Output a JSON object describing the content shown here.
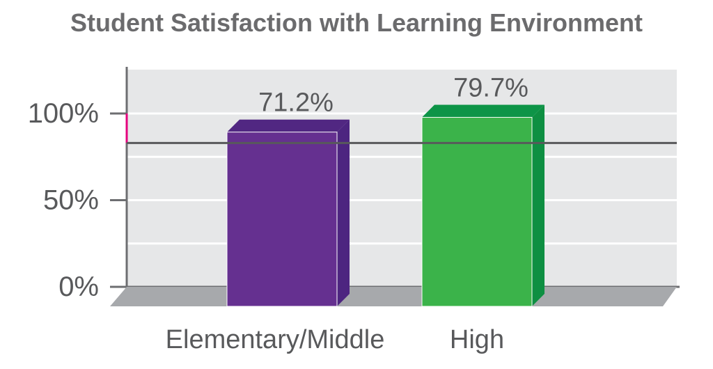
{
  "chart_data": {
    "type": "bar",
    "title": "Student Satisfaction with Learning Environment",
    "categories": [
      "Elementary/Middle",
      "High"
    ],
    "values": [
      71.2,
      79.7
    ],
    "value_labels": [
      "71.2%",
      "79.7%"
    ],
    "ylim": [
      0,
      100
    ],
    "yticks": [
      {
        "value": 0,
        "label": "0%"
      },
      {
        "value": 50,
        "label": "50%"
      },
      {
        "value": 100,
        "label": "100%"
      }
    ],
    "reference_line": 83,
    "grid": true,
    "colors": {
      "bars": [
        "#653090",
        "#3bb34a"
      ],
      "bar_tops": [
        "#512782",
        "#0d9447"
      ],
      "bar_sides": [
        "#4d2580",
        "#0e8f42"
      ],
      "plot_background": "#e6e7e8",
      "floor": "#a7a9ac",
      "axis": "#6d6e71",
      "reference_line": "#58595b",
      "accent_mark": "#e5007e"
    }
  }
}
